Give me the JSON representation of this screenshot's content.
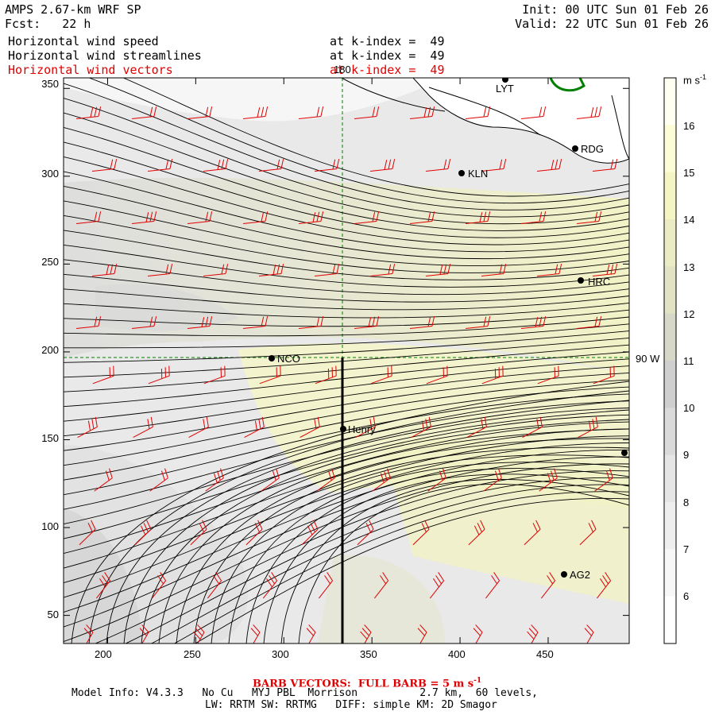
{
  "header": {
    "model_title": "AMPS 2.67-km WRF SP",
    "forecast_line": "Fcst:   22 h",
    "init_line": "Init: 00 UTC Sun 01 Feb 26",
    "valid_line": "Valid: 22 UTC Sun 01 Feb 26",
    "fields": [
      {
        "name": "Horizontal wind speed",
        "level": "at k-index =  49"
      },
      {
        "name": "Horizontal wind streamlines",
        "level": "at k-index =  49"
      },
      {
        "name": "Horizontal wind vectors",
        "level": "at k-index =  49"
      }
    ]
  },
  "map": {
    "meridian_label": "180",
    "parallel_label": "90 W",
    "stations": [
      "LYT",
      "RDG",
      "KLN",
      "HRC",
      "NCO",
      "Henry",
      "AG2"
    ],
    "x_ticks": [
      200,
      250,
      300,
      350,
      400,
      450
    ],
    "y_ticks": [
      350,
      300,
      250,
      200,
      150,
      100,
      50
    ],
    "x_range": [
      175,
      496
    ],
    "y_range": [
      34,
      356
    ]
  },
  "colorbar": {
    "unit_label": "m s",
    "unit_exponent": "-1",
    "levels": [
      16,
      15,
      14,
      13,
      12,
      11,
      10,
      9,
      8,
      7,
      6
    ],
    "colors": [
      "#fffff2",
      "#fcfcd6",
      "#f5f5c4",
      "#ececc4",
      "#e2e2c4",
      "#d8d8c8",
      "#cfcfcf",
      "#dadada",
      "#e5e5e5",
      "#eeeeee",
      "#f7f7f7",
      "#ffffff"
    ]
  },
  "footer": {
    "barb_note": "BARB VECTORS:  FULL BARB = 5 m s",
    "barb_exponent": "-1",
    "model_info_1": "Model Info: V4.3.3   No Cu   MYJ PBL  Morrison          2.7 km,  60 levels,",
    "model_info_2": "LW: RRTM SW: RRTMG   DIFF: simple KM: 2D Smagor"
  }
}
